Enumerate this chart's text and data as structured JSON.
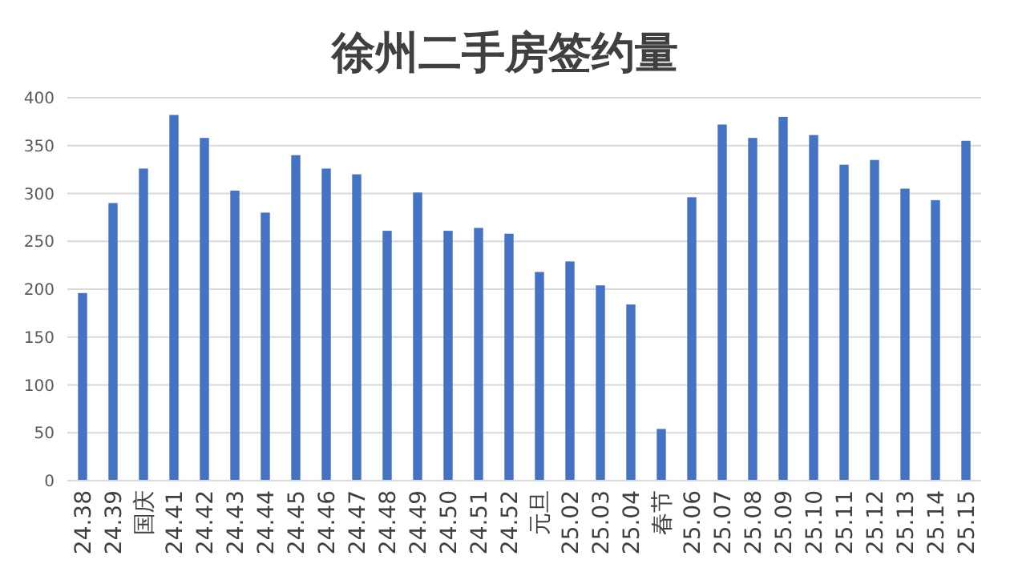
{
  "chart_data": {
    "type": "bar",
    "title": "徐州二手房签约量",
    "categories": [
      "24.38",
      "24.39",
      "国庆",
      "24.41",
      "24.42",
      "24.43",
      "24.44",
      "24.45",
      "24.46",
      "24.47",
      "24.48",
      "24.49",
      "24.50",
      "24.51",
      "24.52",
      "元旦",
      "25.02",
      "25.03",
      "25.04",
      "春节",
      "25.06",
      "25.07",
      "25.08",
      "25.09",
      "25.10",
      "25.11",
      "25.12",
      "25.13",
      "25.14",
      "25.15"
    ],
    "values": [
      196,
      290,
      326,
      382,
      358,
      303,
      280,
      340,
      326,
      320,
      261,
      301,
      261,
      264,
      258,
      218,
      229,
      204,
      184,
      54,
      296,
      372,
      358,
      380,
      361,
      330,
      335,
      305,
      293,
      355
    ],
    "color": "#4472c4",
    "ylim": [
      0,
      400
    ],
    "yticks": [
      0,
      50,
      100,
      150,
      200,
      250,
      300,
      350,
      400
    ],
    "grid": "y"
  }
}
